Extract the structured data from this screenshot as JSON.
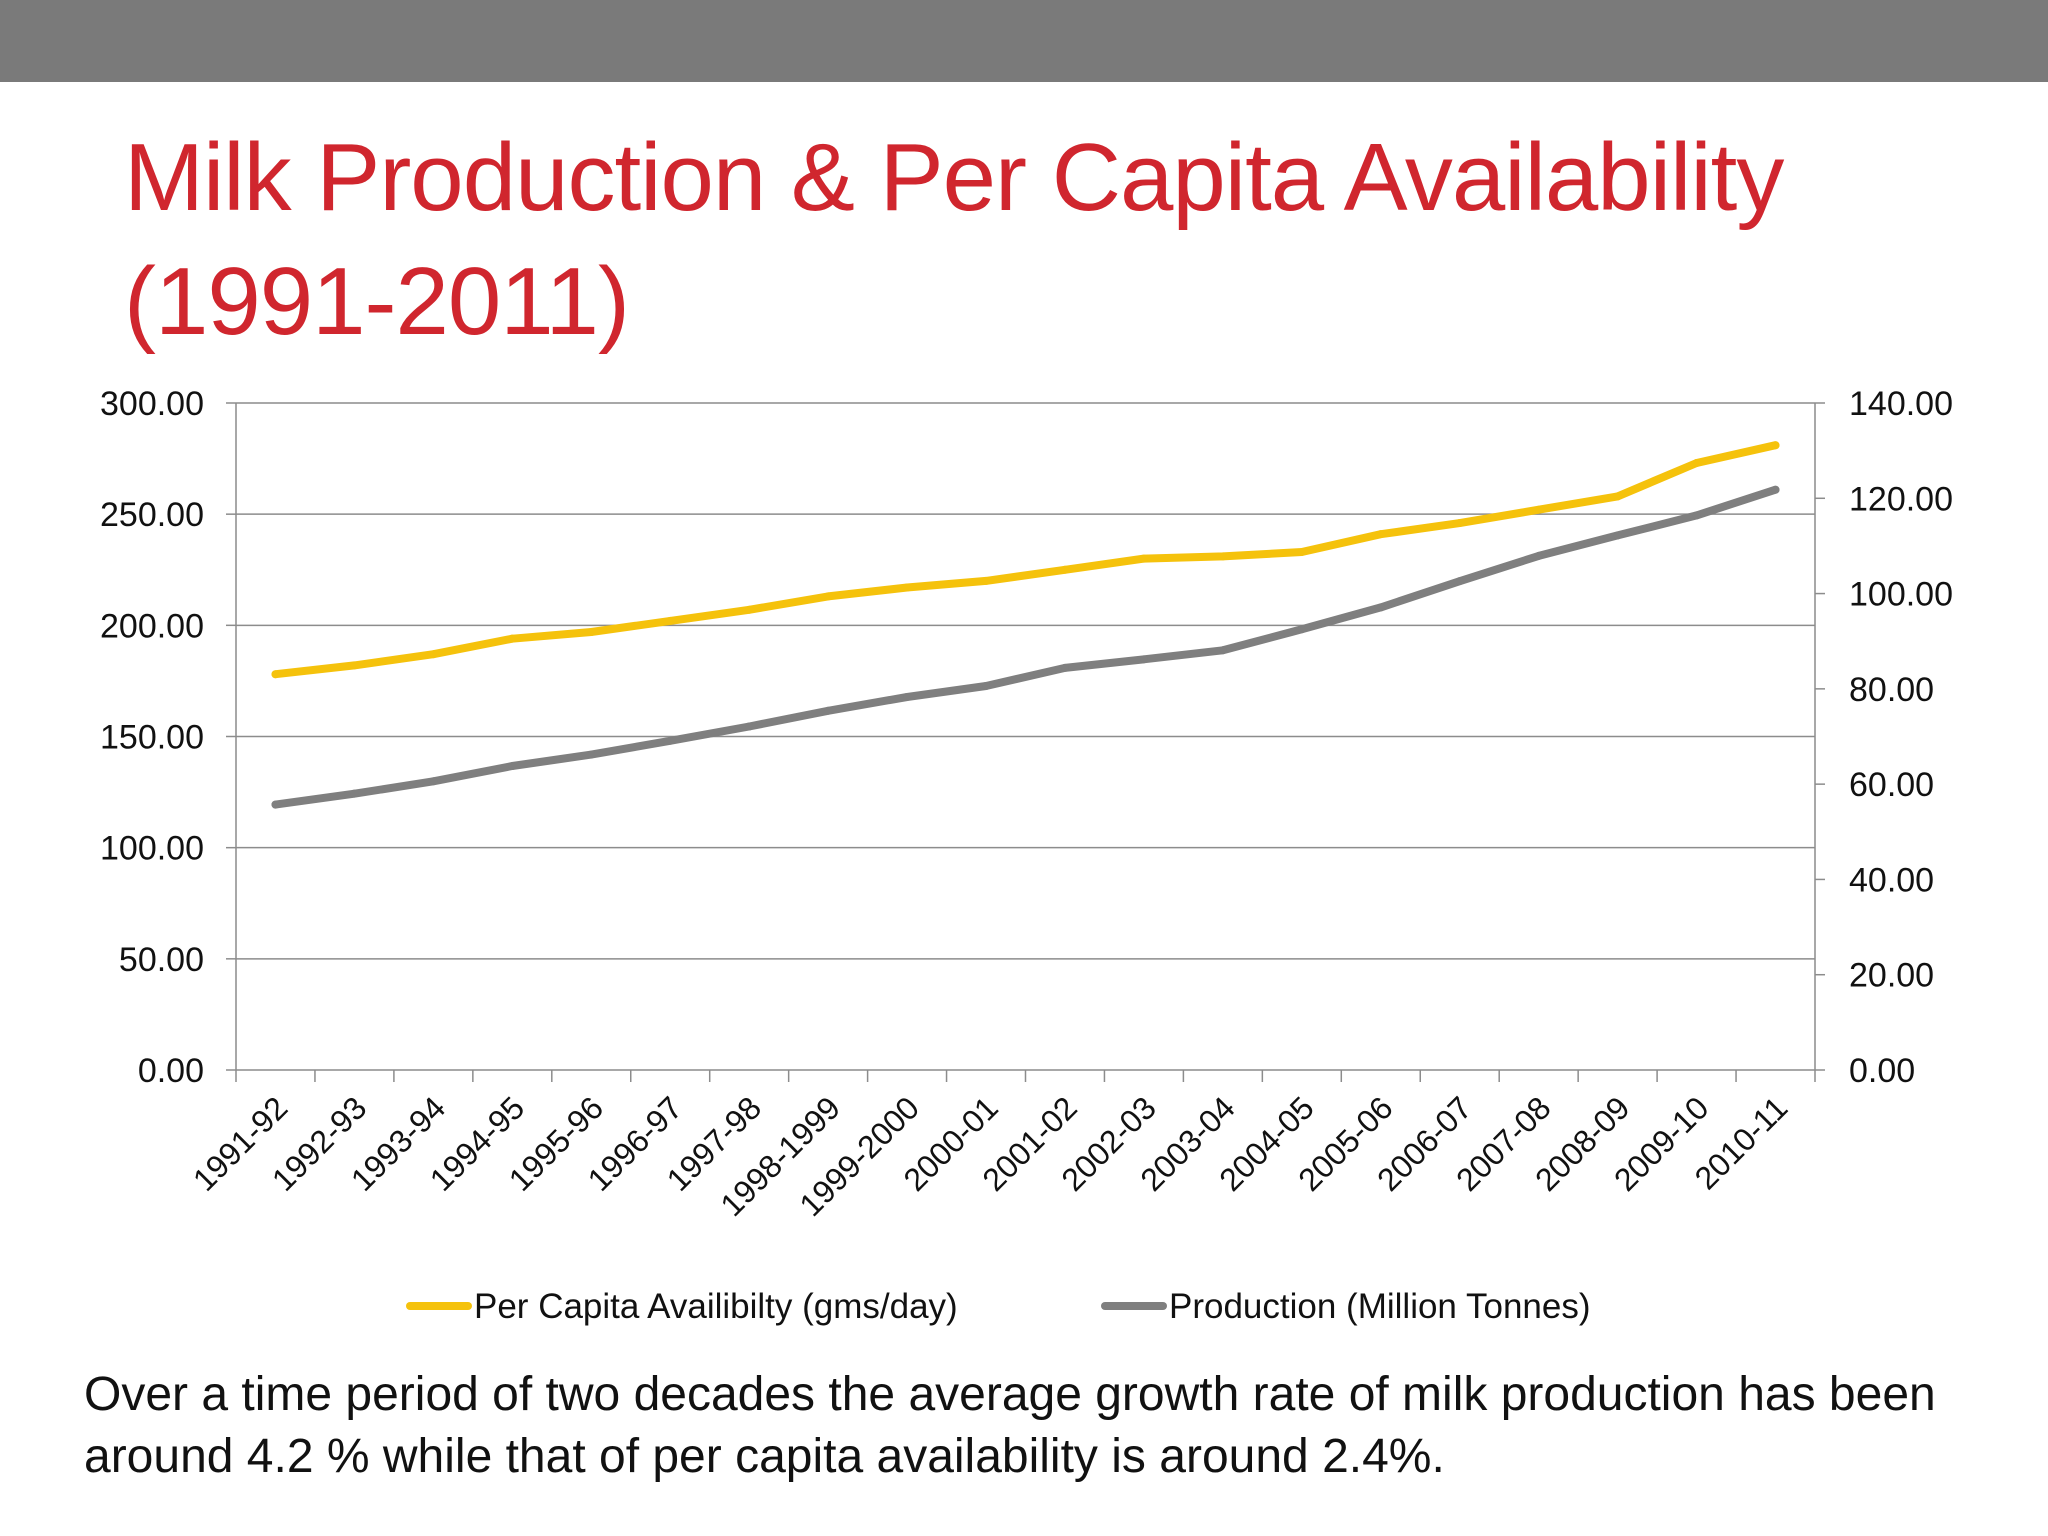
{
  "slide": {
    "title_line1": "Milk Production & Per Capita Availability",
    "title_line2": "(1991-2011)",
    "caption": "Over a time period of two decades the average growth rate of milk production has been around 4.2 % while that of per capita availability is around 2.4%."
  },
  "colors": {
    "top_bar": "#7a7a7a",
    "title": "#d0262e",
    "per_capita": "#f5c20c",
    "production": "#7f7f7f",
    "gridline": "#8c8c8c"
  },
  "chart_data": {
    "type": "line",
    "categories": [
      "1991-92",
      "1992-93",
      "1993-94",
      "1994-95",
      "1995-96",
      "1996-97",
      "1997-98",
      "1998-1999",
      "1999-2000",
      "2000-01",
      "2001-02",
      "2002-03",
      "2003-04",
      "2004-05",
      "2005-06",
      "2006-07",
      "2007-08",
      "2008-09",
      "2009-10",
      "2010-11"
    ],
    "y_left": {
      "min": 0,
      "max": 300,
      "ticks": [
        "0.00",
        "50.00",
        "100.00",
        "150.00",
        "200.00",
        "250.00",
        "300.00"
      ]
    },
    "y_right": {
      "min": 0,
      "max": 140,
      "ticks": [
        "0.00",
        "20.00",
        "40.00",
        "60.00",
        "80.00",
        "100.00",
        "120.00",
        "140.00"
      ]
    },
    "grid": true,
    "legend_position": "bottom",
    "series": [
      {
        "name": "Per Capita Availibilty (gms/day)",
        "axis": "left",
        "color": "#f5c20c",
        "values": [
          178,
          182,
          187,
          194,
          197,
          202,
          207,
          213,
          217,
          220,
          225,
          230,
          231,
          233,
          241,
          246,
          252,
          258,
          273,
          281
        ]
      },
      {
        "name": "Production (Million Tonnes)",
        "axis": "right",
        "color": "#7f7f7f",
        "values": [
          55.7,
          58.0,
          60.6,
          63.8,
          66.2,
          69.1,
          72.1,
          75.4,
          78.3,
          80.6,
          84.4,
          86.2,
          88.1,
          92.5,
          97.1,
          102.6,
          107.9,
          112.2,
          116.4,
          121.8
        ]
      }
    ]
  }
}
